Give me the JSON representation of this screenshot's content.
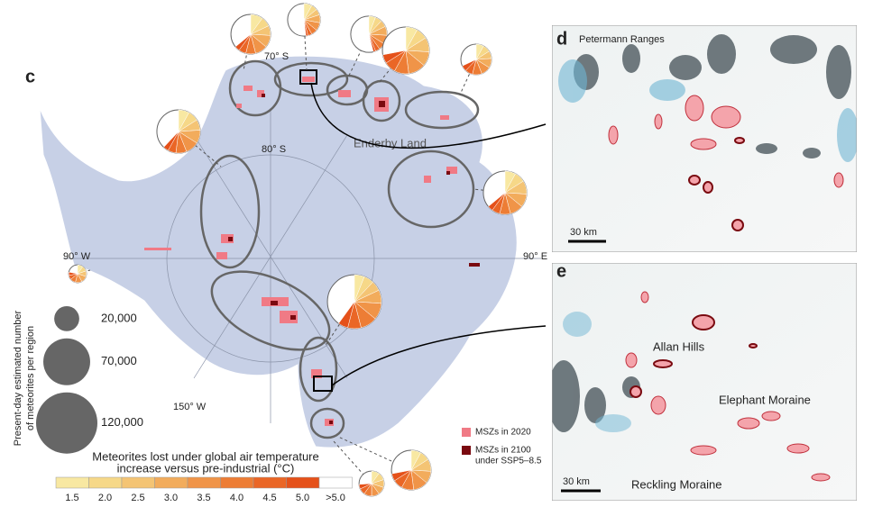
{
  "map": {
    "panel_c": {
      "letter": "c",
      "lat_labels": [
        "70° S",
        "80° S"
      ],
      "lon_labels": [
        "90° W",
        "90° E",
        "150° W"
      ],
      "place": "Enderby Land"
    },
    "size_legend": {
      "title_lines": [
        "Present-day estimated number",
        "of meteorites per region"
      ],
      "sizes": [
        {
          "value": 20000,
          "label": "20,000"
        },
        {
          "value": 70000,
          "label": "70,000"
        },
        {
          "value": 120000,
          "label": "120,000"
        }
      ]
    },
    "colorbar": {
      "title_lines": [
        "Meteorites lost under global air temperature",
        "increase versus pre-industrial (°C)"
      ],
      "labels": [
        "1.5",
        "2.0",
        "2.5",
        "3.0",
        "3.5",
        "4.0",
        "4.5",
        "5.0",
        ">5.0"
      ],
      "colors": [
        "#f8e8a2",
        "#f6d888",
        "#f4c474",
        "#f2ac5c",
        "#f09448",
        "#ed7d35",
        "#ea6626",
        "#e5511a",
        "#ffffff"
      ]
    },
    "msz_legend": [
      {
        "label_lines": [
          "MSZs in 2020"
        ],
        "color": "#f07a85"
      },
      {
        "label_lines": [
          "MSZs in 2100",
          "under SSP5–8.5"
        ],
        "color": "#7a0a10"
      }
    ],
    "regions": [
      {
        "count": 50000,
        "lost": [
          10,
          8,
          8,
          10,
          10,
          8,
          6,
          4,
          0
        ]
      },
      {
        "count": 34000,
        "lost": [
          8,
          6,
          6,
          8,
          8,
          6,
          4,
          2,
          0
        ]
      },
      {
        "count": 42000,
        "lost": [
          6,
          6,
          6,
          8,
          8,
          6,
          4,
          2,
          0
        ]
      },
      {
        "count": 70000,
        "lost": [
          8,
          8,
          10,
          10,
          12,
          10,
          8,
          6,
          0
        ]
      },
      {
        "count": 30000,
        "lost": [
          8,
          8,
          8,
          10,
          10,
          10,
          8,
          6,
          0
        ]
      },
      {
        "count": 60000,
        "lost": [
          8,
          8,
          8,
          10,
          10,
          8,
          6,
          4,
          0
        ]
      },
      {
        "count": 60000,
        "lost": [
          8,
          8,
          10,
          10,
          10,
          8,
          6,
          4,
          0
        ]
      },
      {
        "count": 93000,
        "lost": [
          6,
          6,
          6,
          8,
          10,
          10,
          8,
          6,
          0
        ]
      },
      {
        "count": 50000,
        "lost": [
          8,
          8,
          10,
          10,
          12,
          10,
          8,
          6,
          0
        ]
      },
      {
        "count": 20000,
        "lost": [
          10,
          10,
          10,
          10,
          10,
          10,
          8,
          6,
          0
        ]
      },
      {
        "count": 10000,
        "lost": [
          10,
          10,
          10,
          12,
          12,
          10,
          8,
          6,
          0
        ]
      }
    ],
    "panel_d": {
      "letter": "d",
      "place": "Petermann Ranges",
      "scale": "30 km"
    },
    "panel_e": {
      "letter": "e",
      "places": [
        "Allan Hills",
        "Elephant Moraine",
        "Reckling Moraine"
      ],
      "scale": "30 km"
    }
  }
}
